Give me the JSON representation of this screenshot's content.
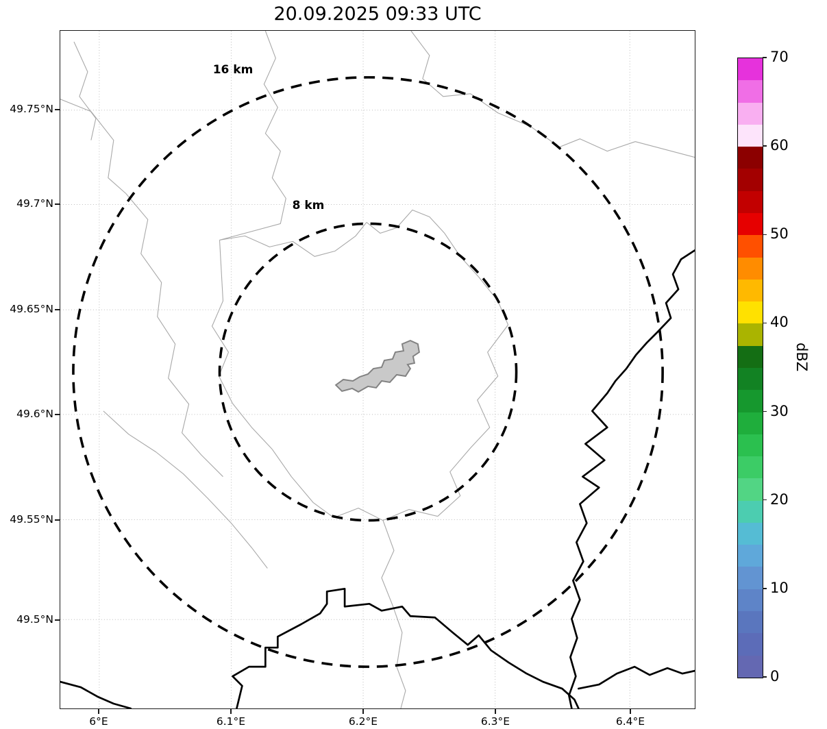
{
  "title": "20.09.2025 09:33 UTC",
  "axes": {
    "x_tick_labels": [
      "6°E",
      "6.1°E",
      "6.2°E",
      "6.3°E",
      "6.4°E"
    ],
    "y_tick_labels": [
      "49.75°N",
      "49.7°N",
      "49.65°N",
      "49.6°N",
      "49.55°N",
      "49.5°N"
    ]
  },
  "rings": {
    "outer_label": "16 km",
    "inner_label": "8 km"
  },
  "colorbar": {
    "label": "dBZ",
    "tick_labels": [
      "70",
      "60",
      "50",
      "40",
      "30",
      "20",
      "10",
      "0"
    ],
    "colors_top_to_bottom": [
      "#e632dc",
      "#f06ee6",
      "#f9aff1",
      "#fde4fb",
      "#8c0000",
      "#a30000",
      "#c20000",
      "#e60000",
      "#ff5000",
      "#ff8c00",
      "#ffb900",
      "#ffe100",
      "#aab400",
      "#146e14",
      "#128223",
      "#16982e",
      "#1fae3c",
      "#2bc04f",
      "#3ccc66",
      "#52d584",
      "#4ccdb0",
      "#55bcd4",
      "#5fa8da",
      "#6294d2",
      "#5e84c8",
      "#5a76be",
      "#5c6cb8",
      "#6468b2"
    ]
  },
  "map_features": {
    "center_area": "gray urban/airport area polygon",
    "thin_lines": "administrative boundaries",
    "thick_lines": "country borders / rivers"
  },
  "chart_data": {
    "type": "heatmap",
    "title": "20.09.2025 09:33 UTC",
    "xlabel": "",
    "ylabel": "",
    "x_tick_labels": [
      "6°E",
      "6.1°E",
      "6.2°E",
      "6.3°E",
      "6.4°E"
    ],
    "y_tick_labels": [
      "49.75°N",
      "49.7°N",
      "49.65°N",
      "49.6°N",
      "49.55°N",
      "49.5°N"
    ],
    "x_range_deg_east": [
      5.97,
      6.45
    ],
    "y_range_deg_north": [
      49.46,
      49.79
    ],
    "grid": true,
    "colorbar_label": "dBZ",
    "colorbar_range": [
      0,
      70
    ],
    "colorbar_ticks": [
      0,
      10,
      20,
      30,
      40,
      50,
      60,
      70
    ],
    "legend_position": "right colorbar",
    "range_rings_km": [
      8,
      16
    ],
    "ring_labels": [
      "8 km",
      "16 km"
    ],
    "ring_center": {
      "lon_deg_east": 6.2,
      "lat_deg_north": 49.62
    },
    "reflectivity_echoes": [],
    "note": "Radar reflectivity map for 20.09.2025 09:33 UTC; no precipitation echoes visible. Shows dashed 8 km and 16 km range rings around the radar site, a gray built-up area at the center, thin administrative boundaries and thick border/river lines."
  }
}
